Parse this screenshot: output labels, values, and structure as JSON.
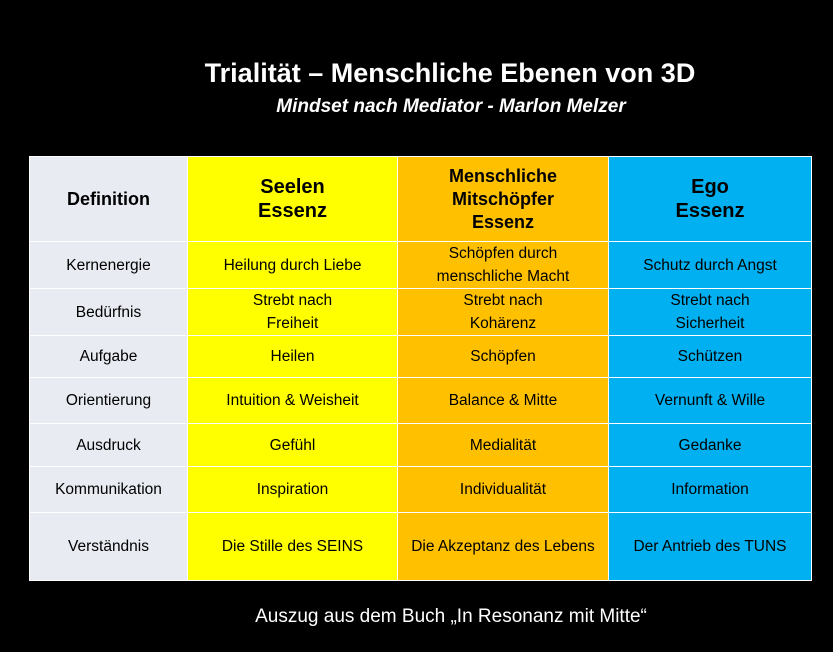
{
  "title": "Trialität – Menschliche Ebenen von 3D",
  "subtitle": "Mindset nach Mediator - Marlon Melzer",
  "footer": "Auszug aus dem Buch „In Resonanz mit Mitte“",
  "colors": {
    "label_column": "#e9ebf3",
    "seelen": "#ffff00",
    "menschliche": "#ffc000",
    "ego": "#00b0f0",
    "background": "#000000"
  },
  "header": {
    "definition": "Definition",
    "seelen": "Seelen\nEssenz",
    "menschliche": "Menschliche\nMitschöpfer\nEssenz",
    "ego": "Ego\nEssenz"
  },
  "rows": [
    {
      "label": "Kernenergie",
      "seelen": "Heilung durch Liebe",
      "menschliche": "Schöpfen durch\nmenschliche Macht",
      "ego": "Schutz durch Angst"
    },
    {
      "label": "Bedürfnis",
      "seelen": "Strebt nach\nFreiheit",
      "menschliche": "Strebt nach\nKohärenz",
      "ego": "Strebt nach\nSicherheit"
    },
    {
      "label": "Aufgabe",
      "seelen": "Heilen",
      "menschliche": "Schöpfen",
      "ego": "Schützen"
    },
    {
      "label": "Orientierung",
      "seelen": "Intuition & Weisheit",
      "menschliche": "Balance & Mitte",
      "ego": "Vernunft & Wille"
    },
    {
      "label": "Ausdruck",
      "seelen": "Gefühl",
      "menschliche": "Medialität",
      "ego": "Gedanke"
    },
    {
      "label": "Kommunikation",
      "seelen": "Inspiration",
      "menschliche": "Individualität",
      "ego": "Information"
    },
    {
      "label": "Verständnis",
      "seelen": "Die Stille des SEINS",
      "menschliche": "Die Akzeptanz des Lebens",
      "ego": "Der Antrieb des TUNS"
    }
  ]
}
